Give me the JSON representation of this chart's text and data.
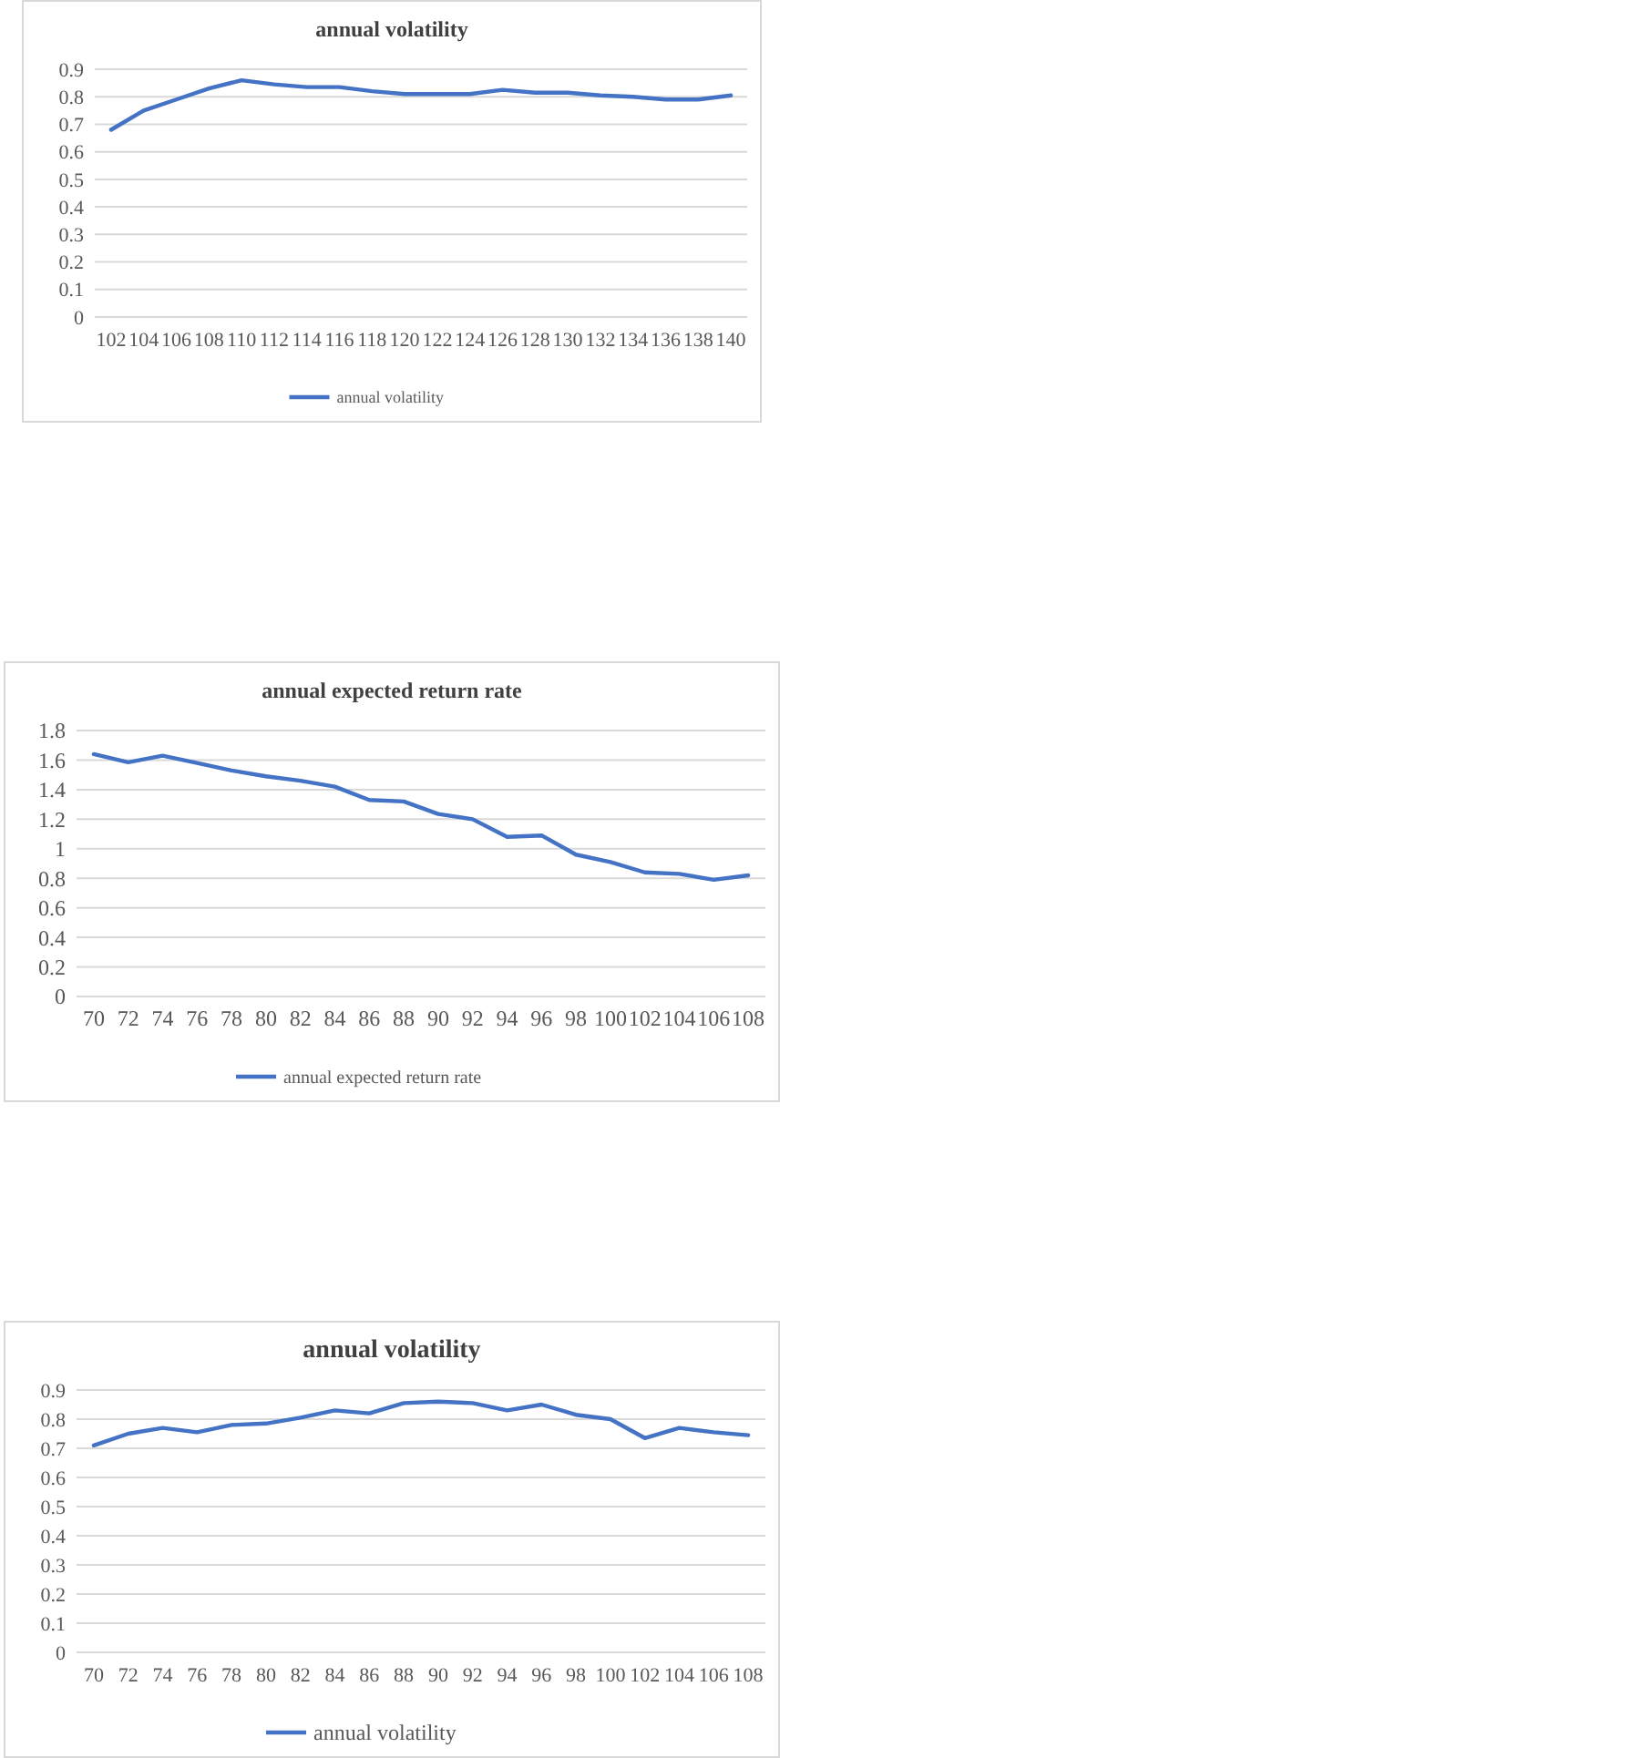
{
  "chart_data": [
    {
      "type": "line",
      "title": "annual volatility",
      "categories": [
        "102",
        "104",
        "106",
        "108",
        "110",
        "112",
        "114",
        "116",
        "118",
        "120",
        "122",
        "124",
        "126",
        "128",
        "130",
        "132",
        "134",
        "136",
        "138",
        "140"
      ],
      "series": [
        {
          "name": "annual volatility",
          "color": "#4472c4",
          "values": [
            0.68,
            0.75,
            0.79,
            0.83,
            0.86,
            0.845,
            0.835,
            0.835,
            0.82,
            0.81,
            0.81,
            0.81,
            0.825,
            0.815,
            0.815,
            0.805,
            0.8,
            0.79,
            0.79,
            0.805
          ]
        }
      ],
      "ylim": [
        0,
        0.9
      ],
      "yticks": [
        0,
        0.1,
        0.2,
        0.3,
        0.4,
        0.5,
        0.6,
        0.7,
        0.8,
        0.9
      ],
      "grid": "y",
      "legend": "bottom",
      "marker": "none",
      "line_style": "solid"
    },
    {
      "type": "line",
      "title": "annual expected return rate",
      "categories": [
        "70",
        "72",
        "74",
        "76",
        "78",
        "80",
        "82",
        "84",
        "86",
        "88",
        "90",
        "92",
        "94",
        "96",
        "98",
        "100",
        "102",
        "104",
        "106",
        "108"
      ],
      "series": [
        {
          "name": "annual expected return rate",
          "color": "#4472c4",
          "values": [
            1.64,
            1.585,
            1.63,
            1.58,
            1.53,
            1.49,
            1.46,
            1.42,
            1.33,
            1.32,
            1.235,
            1.2,
            1.08,
            1.09,
            0.96,
            0.91,
            0.84,
            0.83,
            0.79,
            0.82
          ]
        }
      ],
      "ylim": [
        0,
        1.8
      ],
      "yticks": [
        0,
        0.2,
        0.4,
        0.6,
        0.8,
        1,
        1.2,
        1.4,
        1.6,
        1.8
      ],
      "grid": "y",
      "legend": "bottom",
      "marker": "none",
      "line_style": "solid"
    },
    {
      "type": "line",
      "title": "annual volatility",
      "categories": [
        "70",
        "72",
        "74",
        "76",
        "78",
        "80",
        "82",
        "84",
        "86",
        "88",
        "90",
        "92",
        "94",
        "96",
        "98",
        "100",
        "102",
        "104",
        "106",
        "108"
      ],
      "series": [
        {
          "name": "annual volatility",
          "color": "#4472c4",
          "values": [
            0.71,
            0.75,
            0.77,
            0.755,
            0.78,
            0.785,
            0.805,
            0.83,
            0.82,
            0.855,
            0.86,
            0.855,
            0.83,
            0.85,
            0.815,
            0.8,
            0.735,
            0.77,
            0.755,
            0.745
          ]
        }
      ],
      "ylim": [
        0,
        0.9
      ],
      "yticks": [
        0,
        0.1,
        0.2,
        0.3,
        0.4,
        0.5,
        0.6,
        0.7,
        0.8,
        0.9
      ],
      "grid": "y",
      "legend": "bottom",
      "marker": "none",
      "line_style": "solid"
    }
  ]
}
